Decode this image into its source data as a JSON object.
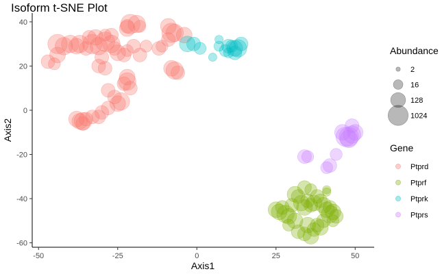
{
  "chart_data": {
    "type": "scatter",
    "title": "Isoform t-SNE Plot",
    "xlabel": "Axis1",
    "ylabel": "Axis2",
    "xlim": [
      -52,
      56
    ],
    "ylim": [
      -62,
      44
    ],
    "x_ticks": [
      -50,
      -25,
      0,
      25,
      50
    ],
    "y_ticks": [
      40,
      20,
      0,
      -20,
      -40,
      -60
    ],
    "x_tick_labels": [
      "-50",
      "-25",
      "0",
      "25",
      "50"
    ],
    "y_tick_labels": [
      "40",
      "20",
      "0",
      "-20",
      "-40",
      "-60"
    ],
    "grid": false,
    "legend_position": "right",
    "size_legend": {
      "title": "Abundance",
      "levels": [
        {
          "label": "2",
          "value": 2
        },
        {
          "label": "16",
          "value": 16
        },
        {
          "label": "128",
          "value": 128
        },
        {
          "label": "1024",
          "value": 1024
        }
      ]
    },
    "color_legend": {
      "title": "Gene",
      "entries": [
        {
          "label": "Ptprd",
          "color": "#F8766D"
        },
        {
          "label": "Ptprf",
          "color": "#7CAE00"
        },
        {
          "label": "Ptprk",
          "color": "#00BFC4"
        },
        {
          "label": "Ptprs",
          "color": "#C77CFF"
        }
      ]
    },
    "series": [
      {
        "name": "Ptprd",
        "color": "#F8766D",
        "points": [
          [
            -47,
            22,
            64
          ],
          [
            -45,
            21,
            32
          ],
          [
            -44,
            25,
            128
          ],
          [
            -42,
            29,
            256
          ],
          [
            -44,
            30,
            512
          ],
          [
            -40,
            30,
            256
          ],
          [
            -38,
            29,
            128
          ],
          [
            -37,
            30,
            256
          ],
          [
            -35,
            28,
            64
          ],
          [
            -33,
            30,
            512
          ],
          [
            -31,
            29,
            256
          ],
          [
            -29,
            31,
            512
          ],
          [
            -27,
            30,
            256
          ],
          [
            -26,
            28,
            64
          ],
          [
            -25,
            26,
            128
          ],
          [
            -23,
            25,
            64
          ],
          [
            -22,
            27,
            32
          ],
          [
            -20,
            29,
            64
          ],
          [
            -18,
            25,
            64
          ],
          [
            -16,
            29,
            32
          ],
          [
            -34,
            33,
            64
          ],
          [
            -32,
            33,
            128
          ],
          [
            -29,
            34,
            32
          ],
          [
            -27,
            34,
            64
          ],
          [
            -22,
            37,
            128
          ],
          [
            -21,
            39,
            512
          ],
          [
            -19,
            39,
            256
          ],
          [
            -11,
            29,
            32
          ],
          [
            -9,
            32,
            64
          ],
          [
            -8,
            35,
            512
          ],
          [
            -7,
            35,
            256
          ],
          [
            -9,
            38,
            128
          ],
          [
            -4,
            34,
            128
          ],
          [
            -12,
            28,
            64
          ],
          [
            -30,
            24,
            64
          ],
          [
            -31,
            20,
            64
          ],
          [
            -29,
            19,
            64
          ],
          [
            -8,
            19,
            128
          ],
          [
            -7,
            18,
            256
          ],
          [
            -6,
            17,
            64
          ],
          [
            -22,
            13,
            256
          ],
          [
            -22,
            15,
            128
          ],
          [
            -23,
            12,
            64
          ],
          [
            -21,
            10,
            64
          ],
          [
            -28,
            9,
            64
          ],
          [
            -26,
            6,
            64
          ],
          [
            -24,
            4,
            256
          ],
          [
            -25,
            3,
            128
          ],
          [
            -28,
            1,
            64
          ],
          [
            -30,
            -1,
            64
          ],
          [
            -31,
            -3,
            64
          ],
          [
            -33,
            -3,
            64
          ],
          [
            -35,
            -4,
            64
          ],
          [
            -36,
            -5,
            256
          ],
          [
            -37,
            -5,
            128
          ],
          [
            -38,
            -4,
            128
          ],
          [
            -36,
            -6,
            64
          ],
          [
            -22,
            38,
            64
          ],
          [
            -18,
            38,
            32
          ]
        ]
      },
      {
        "name": "Ptprf",
        "color": "#7CAE00",
        "points": [
          [
            25,
            -45,
            128
          ],
          [
            26,
            -46,
            128
          ],
          [
            27,
            -44,
            64
          ],
          [
            28,
            -47,
            256
          ],
          [
            29,
            -48,
            128
          ],
          [
            30,
            -43,
            64
          ],
          [
            31,
            -38,
            128
          ],
          [
            32,
            -39,
            64
          ],
          [
            33,
            -42,
            128
          ],
          [
            34,
            -44,
            128
          ],
          [
            35,
            -41,
            64
          ],
          [
            36,
            -43,
            64
          ],
          [
            37,
            -42,
            128
          ],
          [
            38,
            -39,
            64
          ],
          [
            39,
            -41,
            64
          ],
          [
            40,
            -43,
            128
          ],
          [
            41,
            -45,
            128
          ],
          [
            42,
            -47,
            256
          ],
          [
            43,
            -46,
            128
          ],
          [
            44,
            -48,
            64
          ],
          [
            34,
            -35,
            64
          ],
          [
            36,
            -36,
            32
          ],
          [
            32,
            -55,
            64
          ],
          [
            34,
            -56,
            64
          ],
          [
            35,
            -52,
            128
          ],
          [
            36,
            -57,
            128
          ],
          [
            37,
            -54,
            64
          ],
          [
            38,
            -52,
            64
          ],
          [
            39,
            -53,
            128
          ],
          [
            40,
            -50,
            64
          ],
          [
            31,
            -50,
            128
          ],
          [
            29,
            -52,
            32
          ],
          [
            41,
            -36,
            8
          ],
          [
            41,
            -37,
            8
          ],
          [
            42,
            -44,
            64
          ],
          [
            43,
            -50,
            32
          ]
        ]
      },
      {
        "name": "Ptprk",
        "color": "#00BFC4",
        "points": [
          [
            -3,
            30,
            128
          ],
          [
            -1,
            30,
            64
          ],
          [
            1,
            28,
            32
          ],
          [
            7,
            32,
            8
          ],
          [
            7,
            29,
            16
          ],
          [
            9,
            27,
            32
          ],
          [
            10,
            29,
            64
          ],
          [
            11,
            29,
            32
          ],
          [
            12,
            28,
            128
          ],
          [
            13,
            28,
            256
          ],
          [
            12,
            26,
            64
          ],
          [
            14,
            30,
            64
          ],
          [
            5,
            24,
            8
          ],
          [
            10,
            26,
            16
          ]
        ]
      },
      {
        "name": "Ptprs",
        "color": "#C77CFF",
        "points": [
          [
            46,
            -10,
            128
          ],
          [
            47,
            -12,
            512
          ],
          [
            48,
            -12,
            512
          ],
          [
            49,
            -11,
            256
          ],
          [
            50,
            -10,
            128
          ],
          [
            49,
            -7,
            64
          ],
          [
            48,
            -13,
            256
          ],
          [
            44,
            -20,
            32
          ],
          [
            42,
            -25,
            64
          ],
          [
            41,
            -26,
            32
          ],
          [
            34,
            -21,
            64
          ],
          [
            35,
            -21,
            32
          ]
        ]
      }
    ]
  }
}
